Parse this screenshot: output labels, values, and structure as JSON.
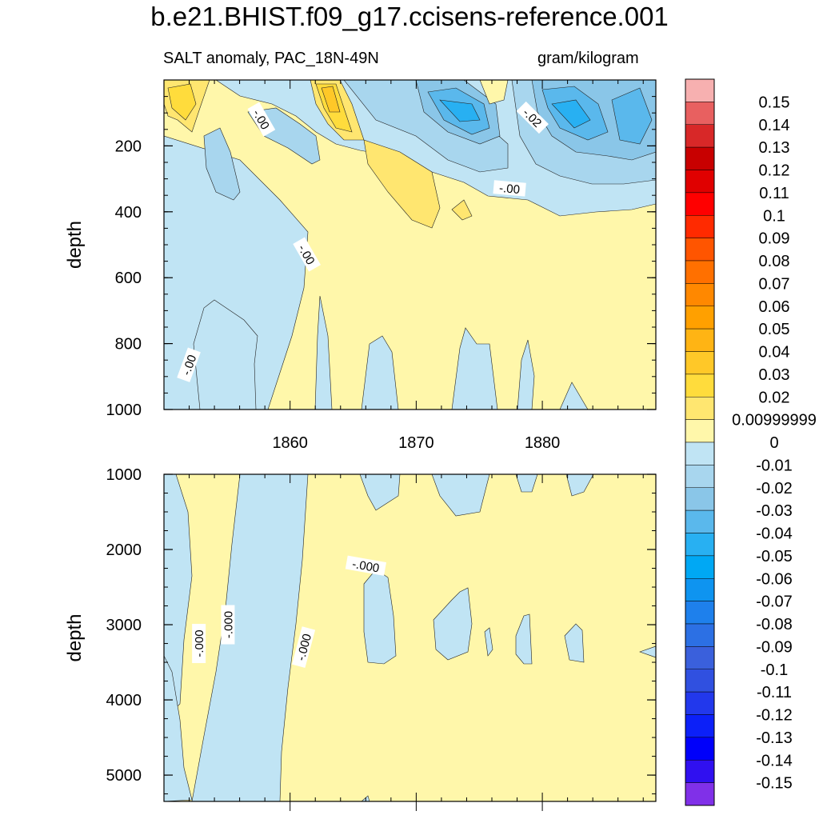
{
  "chart_data": {
    "type": "heatmap",
    "title": "b.e21.BHIST.f09_g17.ccisens-reference.001",
    "subtitle_left": "SALT anomaly, PAC_18N-49N",
    "subtitle_right": "gram/kilogram",
    "x": {
      "label": "",
      "ticks": [
        1860,
        1870,
        1880
      ],
      "range": [
        1850,
        1889
      ]
    },
    "panels": [
      {
        "name": "upper",
        "ylabel": "depth",
        "yrange": [
          0,
          1000
        ],
        "yticks": [
          200,
          400,
          600,
          800,
          1000
        ],
        "contour_labels": [
          {
            "text": "-.00",
            "x": 1857.7,
            "y": 120,
            "rot": 60
          },
          {
            "text": "-.02",
            "x": 1879.2,
            "y": 115,
            "rot": 45
          },
          {
            "text": "-.00",
            "x": 1877.4,
            "y": 330,
            "rot": 5
          },
          {
            "text": "-.00",
            "x": 1861.3,
            "y": 530,
            "rot": 60
          },
          {
            "text": "-.00",
            "x": 1852.0,
            "y": 865,
            "rot": -70
          }
        ]
      },
      {
        "name": "lower",
        "ylabel": "depth",
        "yrange": [
          1000,
          5350
        ],
        "yticks": [
          1000,
          2000,
          3000,
          4000,
          5000
        ],
        "contour_labels": [
          {
            "text": "-.000",
            "x": 1866.0,
            "y": 2220,
            "rot": 10
          },
          {
            "text": "-.000",
            "x": 1852.8,
            "y": 3250,
            "rot": -90
          },
          {
            "text": "-.000",
            "x": 1855.1,
            "y": 3000,
            "rot": -90
          },
          {
            "text": "-.000",
            "x": 1861.1,
            "y": 3300,
            "rot": -75
          }
        ]
      }
    ],
    "colorbar": {
      "labels": [
        "0.15",
        "0.14",
        "0.13",
        "0.12",
        "0.11",
        "0.1",
        "0.09",
        "0.08",
        "0.07",
        "0.06",
        "0.05",
        "0.04",
        "0.03",
        "0.02",
        "0.00999999",
        "0",
        "-0.01",
        "-0.02",
        "-0.03",
        "-0.04",
        "-0.05",
        "-0.06",
        "-0.07",
        "-0.08",
        "-0.09",
        "-0.1",
        "-0.11",
        "-0.12",
        "-0.13",
        "-0.14",
        "-0.15"
      ],
      "colors": [
        "#F7B0B0",
        "#E86060",
        "#D82828",
        "#C80000",
        "#E00000",
        "#FF0000",
        "#FF2A00",
        "#FF5500",
        "#FF7000",
        "#FF8800",
        "#FFA000",
        "#FFB414",
        "#FFC828",
        "#FFDC3C",
        "#FFE670",
        "#FFF7AA",
        "#C0E4F4",
        "#A8D6EE",
        "#8AC6E8",
        "#5AB8EC",
        "#28B0F2",
        "#00A8F4",
        "#0E94F0",
        "#1E80EC",
        "#2C70E4",
        "#3A60DC",
        "#3050E0",
        "#2238EC",
        "#0C20F8",
        "#0000FA",
        "#3010F0",
        "#8030E8"
      ]
    }
  }
}
